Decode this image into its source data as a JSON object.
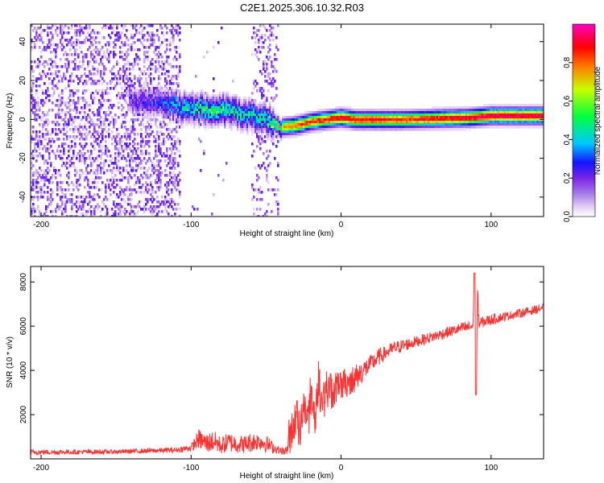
{
  "title": "C2E1.2025.306.10.32.R03",
  "chart_data": [
    {
      "type": "heatmap",
      "xlabel": "Height of straight line (km)",
      "ylabel": "Frequency (Hz)",
      "xlim": [
        -207,
        135
      ],
      "ylim": [
        -50,
        49
      ],
      "x_ticks": [
        -200,
        -100,
        0,
        100
      ],
      "y_ticks": [
        -40,
        -20,
        0,
        20,
        40
      ],
      "colorbar": {
        "label": "Normalized spectral amplitude",
        "range": [
          0,
          1
        ],
        "ticks": [
          0,
          0.2,
          0.4,
          0.6,
          0.8
        ],
        "tick_labels": [
          "0.0",
          "0.2",
          "0.4",
          "0.6",
          "0.8"
        ],
        "colors": [
          "#ffffff",
          "#e4ccf6",
          "#a67ae8",
          "#7a24e6",
          "#1414ff",
          "#00c8ff",
          "#00ff40",
          "#c8ff00",
          "#ff7a00",
          "#ff0000",
          "#ff00c0"
        ]
      },
      "regions": [
        {
          "name": "scattered noise",
          "x_range": [
            -207,
            -107
          ],
          "freq_range": [
            -50,
            49
          ],
          "amplitude": 0.12
        },
        {
          "name": "faint noise band",
          "x_range": [
            -60,
            -42
          ],
          "freq_range": [
            -50,
            49
          ],
          "amplitude": 0.06
        },
        {
          "name": "signal onset",
          "x_range": [
            -142,
            -108
          ],
          "freq_range": [
            5,
            16
          ],
          "amplitude": 0.18
        },
        {
          "name": "signal ridge",
          "x_range": [
            -108,
            135
          ],
          "amplitude": 0.75
        }
      ],
      "ridge": {
        "x": [
          -142,
          -120,
          -105,
          -90,
          -75,
          -60,
          -50,
          -42,
          -30,
          -20,
          -10,
          0,
          10,
          40,
          85,
          100,
          135
        ],
        "freq": [
          10,
          9,
          6,
          5,
          5,
          2,
          0,
          -4,
          -3,
          -1,
          0,
          1,
          0,
          0,
          1,
          2,
          2
        ],
        "peak_amplitude": [
          0.22,
          0.28,
          0.45,
          0.5,
          0.5,
          0.45,
          0.48,
          0.7,
          0.85,
          0.85,
          0.9,
          0.95,
          0.92,
          0.88,
          0.96,
          0.98,
          0.96
        ]
      }
    },
    {
      "type": "line",
      "xlabel": "Height of straight line (km)",
      "ylabel": "SNR (10 * v/v)",
      "xlim": [
        -207,
        135
      ],
      "ylim": [
        0,
        8700
      ],
      "x_ticks": [
        -200,
        -100,
        0,
        100
      ],
      "y_ticks": [
        2000,
        4000,
        6000,
        8000
      ],
      "series": [
        {
          "name": "SNR",
          "color": "#ff3030",
          "x": [
            -207,
            -150,
            -110,
            -100,
            -95,
            -90,
            -85,
            -80,
            -75,
            -70,
            -65,
            -60,
            -55,
            -50,
            -45,
            -40,
            -37,
            -35,
            -32,
            -30,
            -27,
            -25,
            -22,
            -20,
            -17,
            -15,
            -12,
            -10,
            -5,
            0,
            5,
            10,
            15,
            20,
            25,
            30,
            35,
            40,
            50,
            60,
            70,
            80,
            88,
            89,
            90,
            91,
            92,
            95,
            100,
            110,
            120,
            130,
            135
          ],
          "y": [
            300,
            320,
            400,
            500,
            900,
            700,
            800,
            600,
            750,
            700,
            650,
            750,
            800,
            700,
            500,
            350,
            300,
            600,
            1200,
            1800,
            1400,
            2200,
            1800,
            2700,
            2000,
            3000,
            2500,
            3200,
            3000,
            3300,
            3500,
            3700,
            4000,
            4300,
            4600,
            4800,
            5000,
            5100,
            5300,
            5500,
            5700,
            5900,
            6000,
            8400,
            2900,
            7500,
            6100,
            6200,
            6300,
            6450,
            6600,
            6750,
            6850
          ],
          "noise_amplitude": [
            120,
            100,
            120,
            160,
            450,
            450,
            500,
            400,
            450,
            450,
            400,
            450,
            400,
            400,
            250,
            150,
            150,
            800,
            1000,
            1000,
            1000,
            1000,
            1000,
            1000,
            1000,
            900,
            900,
            900,
            800,
            700,
            700,
            600,
            500,
            400,
            400,
            300,
            300,
            300,
            250,
            250,
            250,
            250,
            300,
            300,
            300,
            300,
            300,
            250,
            250,
            200,
            200,
            200,
            200
          ]
        }
      ]
    }
  ]
}
